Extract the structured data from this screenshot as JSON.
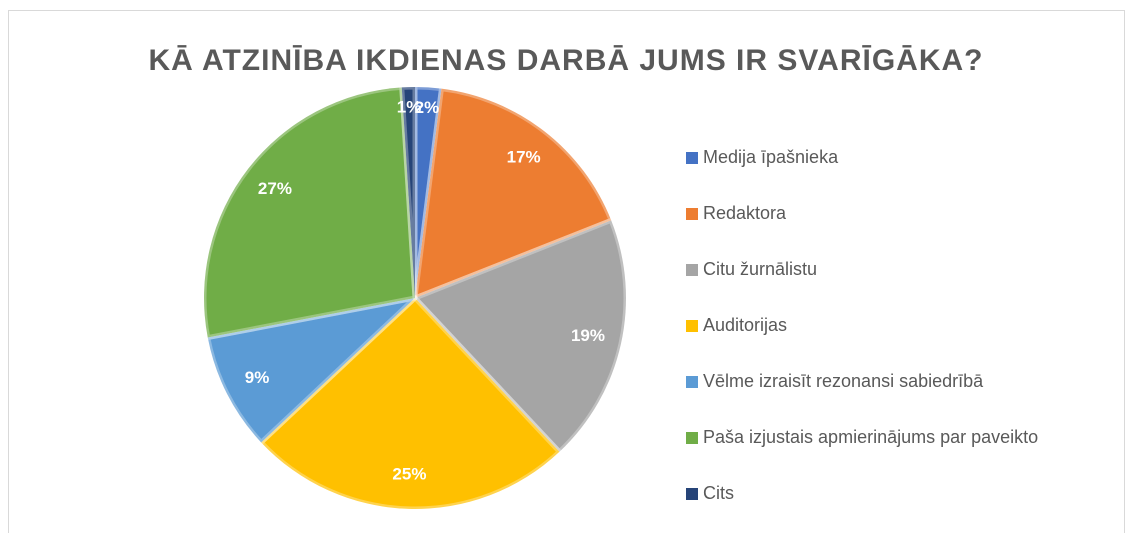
{
  "chart_data": {
    "type": "pie",
    "title": "KĀ ATZINĪBA IKDIENAS DARBĀ JUMS IR SVARĪGĀKA?",
    "categories": [
      "Medija īpašnieka",
      "Redaktora",
      "Citu žurnālistu",
      "Auditorijas",
      "Vēlme izraisīt rezonansi sabiedrībā",
      "Paša izjustais apmierinājums par paveikto",
      "Cits"
    ],
    "values": [
      2,
      17,
      19,
      25,
      9,
      27,
      1
    ],
    "value_labels": [
      "2%",
      "17%",
      "19%",
      "25%",
      "9%",
      "27%",
      "1%"
    ],
    "colors": [
      "#4472c4",
      "#ed7d31",
      "#a5a5a5",
      "#ffc000",
      "#5b9bd5",
      "#70ad47",
      "#264478"
    ],
    "legend": "right"
  }
}
